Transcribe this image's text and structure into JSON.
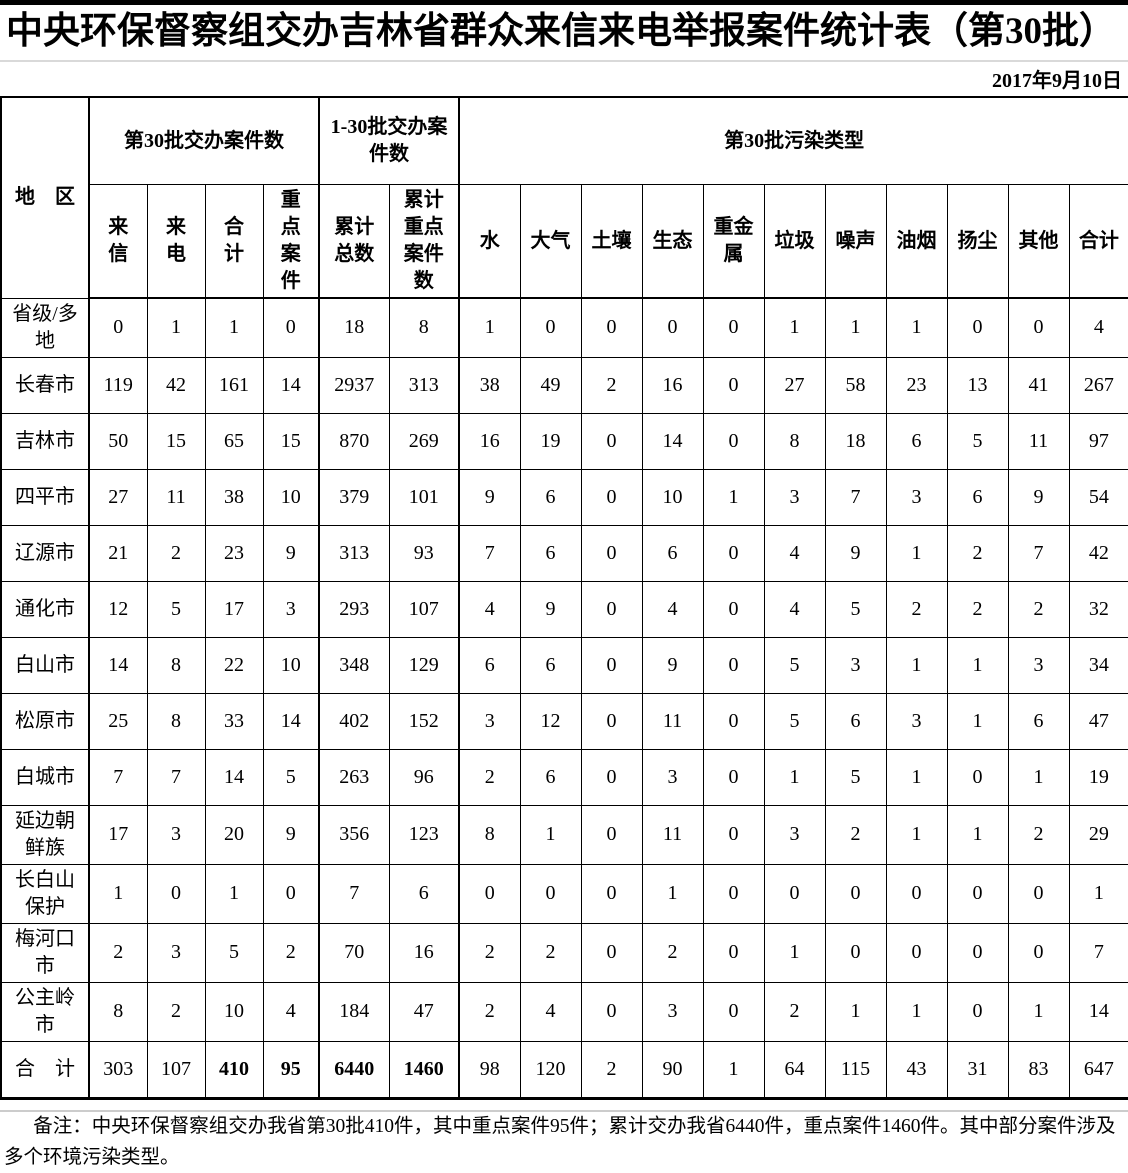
{
  "header": {
    "title": "中央环保督察组交办吉林省群众来信来电举报案件统计表（第30批）",
    "date": "2017年9月10日"
  },
  "table": {
    "region_header": "地　区",
    "groups": [
      {
        "label": "第30批交办案件数",
        "columns": [
          "来信",
          "来电",
          "合计",
          "重点案件"
        ]
      },
      {
        "label": "1-30批交办案件数",
        "columns": [
          "累计总数",
          "累计重点案件数"
        ]
      },
      {
        "label": "第30批污染类型",
        "columns": [
          "水",
          "大气",
          "土壤",
          "生态",
          "重金属",
          "垃圾",
          "噪声",
          "油烟",
          "扬尘",
          "其他",
          "合计"
        ]
      }
    ],
    "rows": [
      {
        "region": "省级/多地",
        "values": [
          0,
          1,
          1,
          0,
          18,
          8,
          1,
          0,
          0,
          0,
          0,
          1,
          1,
          1,
          0,
          0,
          4
        ]
      },
      {
        "region": "长春市",
        "values": [
          119,
          42,
          161,
          14,
          2937,
          313,
          38,
          49,
          2,
          16,
          0,
          27,
          58,
          23,
          13,
          41,
          267
        ]
      },
      {
        "region": "吉林市",
        "values": [
          50,
          15,
          65,
          15,
          870,
          269,
          16,
          19,
          0,
          14,
          0,
          8,
          18,
          6,
          5,
          11,
          97
        ]
      },
      {
        "region": "四平市",
        "values": [
          27,
          11,
          38,
          10,
          379,
          101,
          9,
          6,
          0,
          10,
          1,
          3,
          7,
          3,
          6,
          9,
          54
        ]
      },
      {
        "region": "辽源市",
        "values": [
          21,
          2,
          23,
          9,
          313,
          93,
          7,
          6,
          0,
          6,
          0,
          4,
          9,
          1,
          2,
          7,
          42
        ]
      },
      {
        "region": "通化市",
        "values": [
          12,
          5,
          17,
          3,
          293,
          107,
          4,
          9,
          0,
          4,
          0,
          4,
          5,
          2,
          2,
          2,
          32
        ]
      },
      {
        "region": "白山市",
        "values": [
          14,
          8,
          22,
          10,
          348,
          129,
          6,
          6,
          0,
          9,
          0,
          5,
          3,
          1,
          1,
          3,
          34
        ]
      },
      {
        "region": "松原市",
        "values": [
          25,
          8,
          33,
          14,
          402,
          152,
          3,
          12,
          0,
          11,
          0,
          5,
          6,
          3,
          1,
          6,
          47
        ]
      },
      {
        "region": "白城市",
        "values": [
          7,
          7,
          14,
          5,
          263,
          96,
          2,
          6,
          0,
          3,
          0,
          1,
          5,
          1,
          0,
          1,
          19
        ]
      },
      {
        "region": "延边朝鲜族",
        "values": [
          17,
          3,
          20,
          9,
          356,
          123,
          8,
          1,
          0,
          11,
          0,
          3,
          2,
          1,
          1,
          2,
          29
        ]
      },
      {
        "region": "长白山保护",
        "values": [
          1,
          0,
          1,
          0,
          7,
          6,
          0,
          0,
          0,
          1,
          0,
          0,
          0,
          0,
          0,
          0,
          1
        ]
      },
      {
        "region": "梅河口市",
        "values": [
          2,
          3,
          5,
          2,
          70,
          16,
          2,
          2,
          0,
          2,
          0,
          1,
          0,
          0,
          0,
          0,
          7
        ]
      },
      {
        "region": "公主岭市",
        "values": [
          8,
          2,
          10,
          4,
          184,
          47,
          2,
          4,
          0,
          3,
          0,
          2,
          1,
          1,
          0,
          1,
          14
        ]
      }
    ],
    "total_row": {
      "region": "合　计",
      "values": [
        303,
        107,
        410,
        95,
        6440,
        1460,
        98,
        120,
        2,
        90,
        1,
        64,
        115,
        43,
        31,
        83,
        647
      ],
      "bold_value_indices": [
        2,
        3,
        4,
        5
      ]
    }
  },
  "note": {
    "text": "备注：中央环保督察组交办我省第30批410件，其中重点案件95件；累计交办我省6440件，重点案件1460件。其中部分案件涉及多个环境污染类型。"
  }
}
